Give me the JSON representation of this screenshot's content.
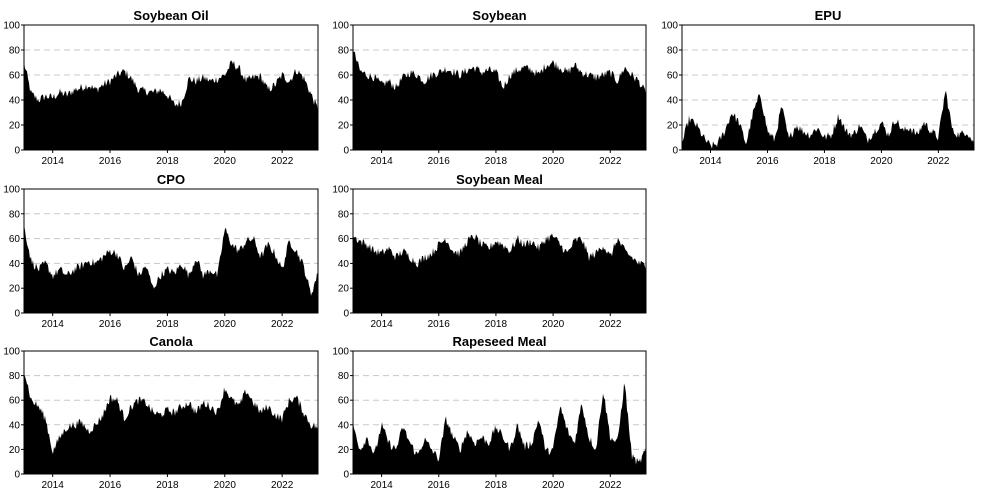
{
  "chart_data": [
    {
      "type": "area",
      "title": "Soybean Oil",
      "ylim": [
        0,
        100
      ],
      "yticks": [
        "0",
        "20",
        "40",
        "60",
        "80",
        "100"
      ],
      "xlim": [
        2013.0,
        2023.25
      ],
      "xticks": [
        "2014",
        "2016",
        "2018",
        "2020",
        "2022"
      ],
      "grid": "horizontal dashed",
      "x": [
        2013.0,
        2013.25,
        2013.5,
        2013.75,
        2014.0,
        2014.25,
        2014.5,
        2014.75,
        2015.0,
        2015.25,
        2015.5,
        2015.75,
        2016.0,
        2016.25,
        2016.5,
        2016.75,
        2017.0,
        2017.25,
        2017.5,
        2017.75,
        2018.0,
        2018.25,
        2018.5,
        2018.75,
        2019.0,
        2019.25,
        2019.5,
        2019.75,
        2020.0,
        2020.25,
        2020.5,
        2020.75,
        2021.0,
        2021.25,
        2021.5,
        2021.75,
        2022.0,
        2022.25,
        2022.5,
        2022.75,
        2023.0,
        2023.25
      ],
      "y": [
        70,
        45,
        40,
        43,
        42,
        46,
        44,
        48,
        50,
        52,
        48,
        52,
        55,
        60,
        63,
        57,
        48,
        47,
        46,
        48,
        44,
        36,
        38,
        57,
        55,
        58,
        55,
        57,
        60,
        70,
        65,
        55,
        58,
        59,
        48,
        52,
        60,
        55,
        64,
        58,
        45,
        32
      ]
    },
    {
      "type": "area",
      "title": "Soybean",
      "ylim": [
        0,
        100
      ],
      "yticks": [
        "0",
        "20",
        "40",
        "60",
        "80",
        "100"
      ],
      "xlim": [
        2013.0,
        2023.25
      ],
      "xticks": [
        "2014",
        "2016",
        "2018",
        "2020",
        "2022"
      ],
      "grid": "horizontal dashed",
      "x": [
        2013.0,
        2013.25,
        2013.5,
        2013.75,
        2014.0,
        2014.25,
        2014.5,
        2014.75,
        2015.0,
        2015.25,
        2015.5,
        2015.75,
        2016.0,
        2016.25,
        2016.5,
        2016.75,
        2017.0,
        2017.25,
        2017.5,
        2017.75,
        2018.0,
        2018.25,
        2018.5,
        2018.75,
        2019.0,
        2019.25,
        2019.5,
        2019.75,
        2020.0,
        2020.25,
        2020.5,
        2020.75,
        2021.0,
        2021.25,
        2021.5,
        2021.75,
        2022.0,
        2022.25,
        2022.5,
        2022.75,
        2023.0,
        2023.25
      ],
      "y": [
        80,
        63,
        60,
        58,
        52,
        55,
        50,
        58,
        62,
        60,
        55,
        60,
        62,
        65,
        63,
        60,
        64,
        66,
        62,
        64,
        62,
        50,
        60,
        64,
        66,
        64,
        60,
        68,
        70,
        66,
        62,
        68,
        62,
        60,
        58,
        60,
        62,
        55,
        66,
        60,
        55,
        45
      ]
    },
    {
      "type": "area",
      "title": "EPU",
      "ylim": [
        0,
        100
      ],
      "yticks": [
        "0",
        "20",
        "40",
        "60",
        "80",
        "100"
      ],
      "xlim": [
        2013.0,
        2023.25
      ],
      "xticks": [
        "2014",
        "2016",
        "2018",
        "2020",
        "2022"
      ],
      "grid": "horizontal dashed",
      "x": [
        2013.0,
        2013.25,
        2013.5,
        2013.75,
        2014.0,
        2014.25,
        2014.5,
        2014.75,
        2015.0,
        2015.25,
        2015.5,
        2015.75,
        2016.0,
        2016.25,
        2016.5,
        2016.75,
        2017.0,
        2017.25,
        2017.5,
        2017.75,
        2018.0,
        2018.25,
        2018.5,
        2018.75,
        2019.0,
        2019.25,
        2019.5,
        2019.75,
        2020.0,
        2020.25,
        2020.5,
        2020.75,
        2021.0,
        2021.25,
        2021.5,
        2021.75,
        2022.0,
        2022.25,
        2022.5,
        2022.75,
        2023.0,
        2023.25
      ],
      "y": [
        5,
        25,
        20,
        10,
        3,
        5,
        15,
        30,
        22,
        5,
        30,
        45,
        15,
        8,
        35,
        8,
        20,
        15,
        12,
        18,
        10,
        12,
        28,
        15,
        12,
        20,
        8,
        15,
        22,
        12,
        25,
        15,
        18,
        12,
        22,
        15,
        10,
        48,
        15,
        12,
        15,
        5
      ]
    },
    {
      "type": "area",
      "title": "CPO",
      "ylim": [
        0,
        100
      ],
      "yticks": [
        "0",
        "20",
        "40",
        "60",
        "80",
        "100"
      ],
      "xlim": [
        2013.0,
        2023.25
      ],
      "xticks": [
        "2014",
        "2016",
        "2018",
        "2020",
        "2022"
      ],
      "grid": "horizontal dashed",
      "x": [
        2013.0,
        2013.25,
        2013.5,
        2013.75,
        2014.0,
        2014.25,
        2014.5,
        2014.75,
        2015.0,
        2015.25,
        2015.5,
        2015.75,
        2016.0,
        2016.25,
        2016.5,
        2016.75,
        2017.0,
        2017.25,
        2017.5,
        2017.75,
        2018.0,
        2018.25,
        2018.5,
        2018.75,
        2019.0,
        2019.25,
        2019.5,
        2019.75,
        2020.0,
        2020.25,
        2020.5,
        2020.75,
        2021.0,
        2021.25,
        2021.5,
        2021.75,
        2022.0,
        2022.25,
        2022.5,
        2022.75,
        2023.0,
        2023.25
      ],
      "y": [
        70,
        42,
        35,
        40,
        30,
        35,
        30,
        35,
        38,
        42,
        40,
        45,
        50,
        48,
        35,
        45,
        30,
        38,
        20,
        30,
        35,
        32,
        40,
        30,
        45,
        30,
        35,
        30,
        68,
        55,
        50,
        58,
        60,
        45,
        55,
        48,
        35,
        58,
        50,
        38,
        15,
        32
      ]
    },
    {
      "type": "area",
      "title": "Soybean Meal",
      "ylim": [
        0,
        100
      ],
      "yticks": [
        "0",
        "20",
        "40",
        "60",
        "80",
        "100"
      ],
      "xlim": [
        2013.0,
        2023.25
      ],
      "xticks": [
        "2014",
        "2016",
        "2018",
        "2020",
        "2022"
      ],
      "grid": "horizontal dashed",
      "x": [
        2013.0,
        2013.25,
        2013.5,
        2013.75,
        2014.0,
        2014.25,
        2014.5,
        2014.75,
        2015.0,
        2015.25,
        2015.5,
        2015.75,
        2016.0,
        2016.25,
        2016.5,
        2016.75,
        2017.0,
        2017.25,
        2017.5,
        2017.75,
        2018.0,
        2018.25,
        2018.5,
        2018.75,
        2019.0,
        2019.25,
        2019.5,
        2019.75,
        2020.0,
        2020.25,
        2020.5,
        2020.75,
        2021.0,
        2021.25,
        2021.5,
        2021.75,
        2022.0,
        2022.25,
        2022.5,
        2022.75,
        2023.0,
        2023.25
      ],
      "y": [
        62,
        58,
        55,
        50,
        48,
        52,
        45,
        50,
        45,
        40,
        45,
        48,
        55,
        60,
        50,
        48,
        58,
        62,
        55,
        52,
        58,
        55,
        50,
        60,
        55,
        58,
        52,
        60,
        62,
        55,
        48,
        58,
        60,
        45,
        48,
        55,
        45,
        60,
        50,
        45,
        40,
        38
      ]
    },
    {
      "type": "area",
      "title": "Canola",
      "ylim": [
        0,
        100
      ],
      "yticks": [
        "0",
        "20",
        "40",
        "60",
        "80",
        "100"
      ],
      "xlim": [
        2013.0,
        2023.25
      ],
      "xticks": [
        "2014",
        "2016",
        "2018",
        "2020",
        "2022"
      ],
      "grid": "horizontal dashed",
      "x": [
        2013.0,
        2013.25,
        2013.5,
        2013.75,
        2014.0,
        2014.25,
        2014.5,
        2014.75,
        2015.0,
        2015.25,
        2015.5,
        2015.75,
        2016.0,
        2016.25,
        2016.5,
        2016.75,
        2017.0,
        2017.25,
        2017.5,
        2017.75,
        2018.0,
        2018.25,
        2018.5,
        2018.75,
        2019.0,
        2019.25,
        2019.5,
        2019.75,
        2020.0,
        2020.25,
        2020.5,
        2020.75,
        2021.0,
        2021.25,
        2021.5,
        2021.75,
        2022.0,
        2022.25,
        2022.5,
        2022.75,
        2023.0,
        2023.25
      ],
      "y": [
        85,
        60,
        55,
        45,
        18,
        30,
        38,
        40,
        42,
        35,
        40,
        48,
        62,
        60,
        45,
        55,
        60,
        58,
        50,
        48,
        52,
        50,
        55,
        58,
        50,
        58,
        55,
        50,
        70,
        60,
        55,
        68,
        58,
        50,
        55,
        48,
        45,
        60,
        62,
        50,
        40,
        38
      ]
    },
    {
      "type": "area",
      "title": "Rapeseed Meal",
      "ylim": [
        0,
        100
      ],
      "yticks": [
        "0",
        "20",
        "40",
        "60",
        "80",
        "100"
      ],
      "xlim": [
        2013.0,
        2023.25
      ],
      "xticks": [
        "2014",
        "2016",
        "2018",
        "2020",
        "2022"
      ],
      "grid": "horizontal dashed",
      "x": [
        2013.0,
        2013.25,
        2013.5,
        2013.75,
        2014.0,
        2014.25,
        2014.5,
        2014.75,
        2015.0,
        2015.25,
        2015.5,
        2015.75,
        2016.0,
        2016.25,
        2016.5,
        2016.75,
        2017.0,
        2017.25,
        2017.5,
        2017.75,
        2018.0,
        2018.25,
        2018.5,
        2018.75,
        2019.0,
        2019.25,
        2019.5,
        2019.75,
        2020.0,
        2020.25,
        2020.5,
        2020.75,
        2021.0,
        2021.25,
        2021.5,
        2021.75,
        2022.0,
        2022.25,
        2022.5,
        2022.75,
        2023.0,
        2023.25
      ],
      "y": [
        40,
        20,
        30,
        15,
        40,
        25,
        20,
        38,
        25,
        15,
        28,
        20,
        12,
        45,
        30,
        20,
        35,
        25,
        30,
        25,
        38,
        30,
        20,
        40,
        22,
        25,
        45,
        18,
        20,
        55,
        35,
        25,
        58,
        30,
        20,
        68,
        30,
        25,
        75,
        15,
        8,
        20
      ]
    }
  ]
}
